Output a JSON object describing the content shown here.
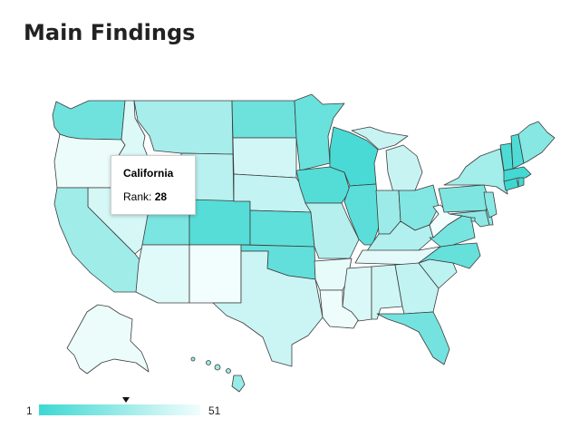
{
  "page": {
    "title": "Main Findings"
  },
  "tooltip": {
    "state": "California",
    "rank_label": "Rank:",
    "rank_value": "28"
  },
  "legend": {
    "min_label": "1",
    "max_label": "51",
    "color_min": "#3ed8d2",
    "color_max": "#f2fdfd",
    "marker_rank": 28
  },
  "map_data": {
    "metric": "Rank",
    "states": [
      {
        "abbr": "WA",
        "rank": 15
      },
      {
        "abbr": "OR",
        "rank": 49
      },
      {
        "abbr": "CA",
        "rank": 28
      },
      {
        "abbr": "ID",
        "rank": 45
      },
      {
        "abbr": "NV",
        "rank": 43
      },
      {
        "abbr": "MT",
        "rank": 30
      },
      {
        "abbr": "WY",
        "rank": 35
      },
      {
        "abbr": "UT",
        "rank": 18
      },
      {
        "abbr": "AZ",
        "rank": 46
      },
      {
        "abbr": "CO",
        "rank": 8
      },
      {
        "abbr": "NM",
        "rank": 51
      },
      {
        "abbr": "ND",
        "rank": 14
      },
      {
        "abbr": "SD",
        "rank": 42
      },
      {
        "abbr": "NE",
        "rank": 38
      },
      {
        "abbr": "KS",
        "rank": 10
      },
      {
        "abbr": "OK",
        "rank": 11
      },
      {
        "abbr": "TX",
        "rank": 40
      },
      {
        "abbr": "MN",
        "rank": 13
      },
      {
        "abbr": "IA",
        "rank": 7
      },
      {
        "abbr": "MO",
        "rank": 34
      },
      {
        "abbr": "AR",
        "rank": 48
      },
      {
        "abbr": "LA",
        "rank": 50
      },
      {
        "abbr": "WI",
        "rank": 4
      },
      {
        "abbr": "IL",
        "rank": 9
      },
      {
        "abbr": "MI",
        "rank": 39
      },
      {
        "abbr": "IN",
        "rank": 27
      },
      {
        "abbr": "OH",
        "rank": 20
      },
      {
        "abbr": "KY",
        "rank": 33
      },
      {
        "abbr": "TN",
        "rank": 47
      },
      {
        "abbr": "MS",
        "rank": 44
      },
      {
        "abbr": "AL",
        "rank": 41
      },
      {
        "abbr": "GA",
        "rank": 37
      },
      {
        "abbr": "FL",
        "rank": 16
      },
      {
        "abbr": "SC",
        "rank": 36
      },
      {
        "abbr": "NC",
        "rank": 12
      },
      {
        "abbr": "VA",
        "rank": 17
      },
      {
        "abbr": "WV",
        "rank": 51
      },
      {
        "abbr": "PA",
        "rank": 19
      },
      {
        "abbr": "NY",
        "rank": 29
      },
      {
        "abbr": "VT",
        "rank": 5
      },
      {
        "abbr": "NH",
        "rank": 6
      },
      {
        "abbr": "ME",
        "rank": 21
      },
      {
        "abbr": "MA",
        "rank": 3
      },
      {
        "abbr": "CT",
        "rank": 1
      },
      {
        "abbr": "RI",
        "rank": 2
      },
      {
        "abbr": "NJ",
        "rank": 22
      },
      {
        "abbr": "DE",
        "rank": 24
      },
      {
        "abbr": "MD",
        "rank": 23
      },
      {
        "abbr": "DC",
        "rank": 25
      },
      {
        "abbr": "AK",
        "rank": 49
      },
      {
        "abbr": "HI",
        "rank": 26
      }
    ]
  }
}
